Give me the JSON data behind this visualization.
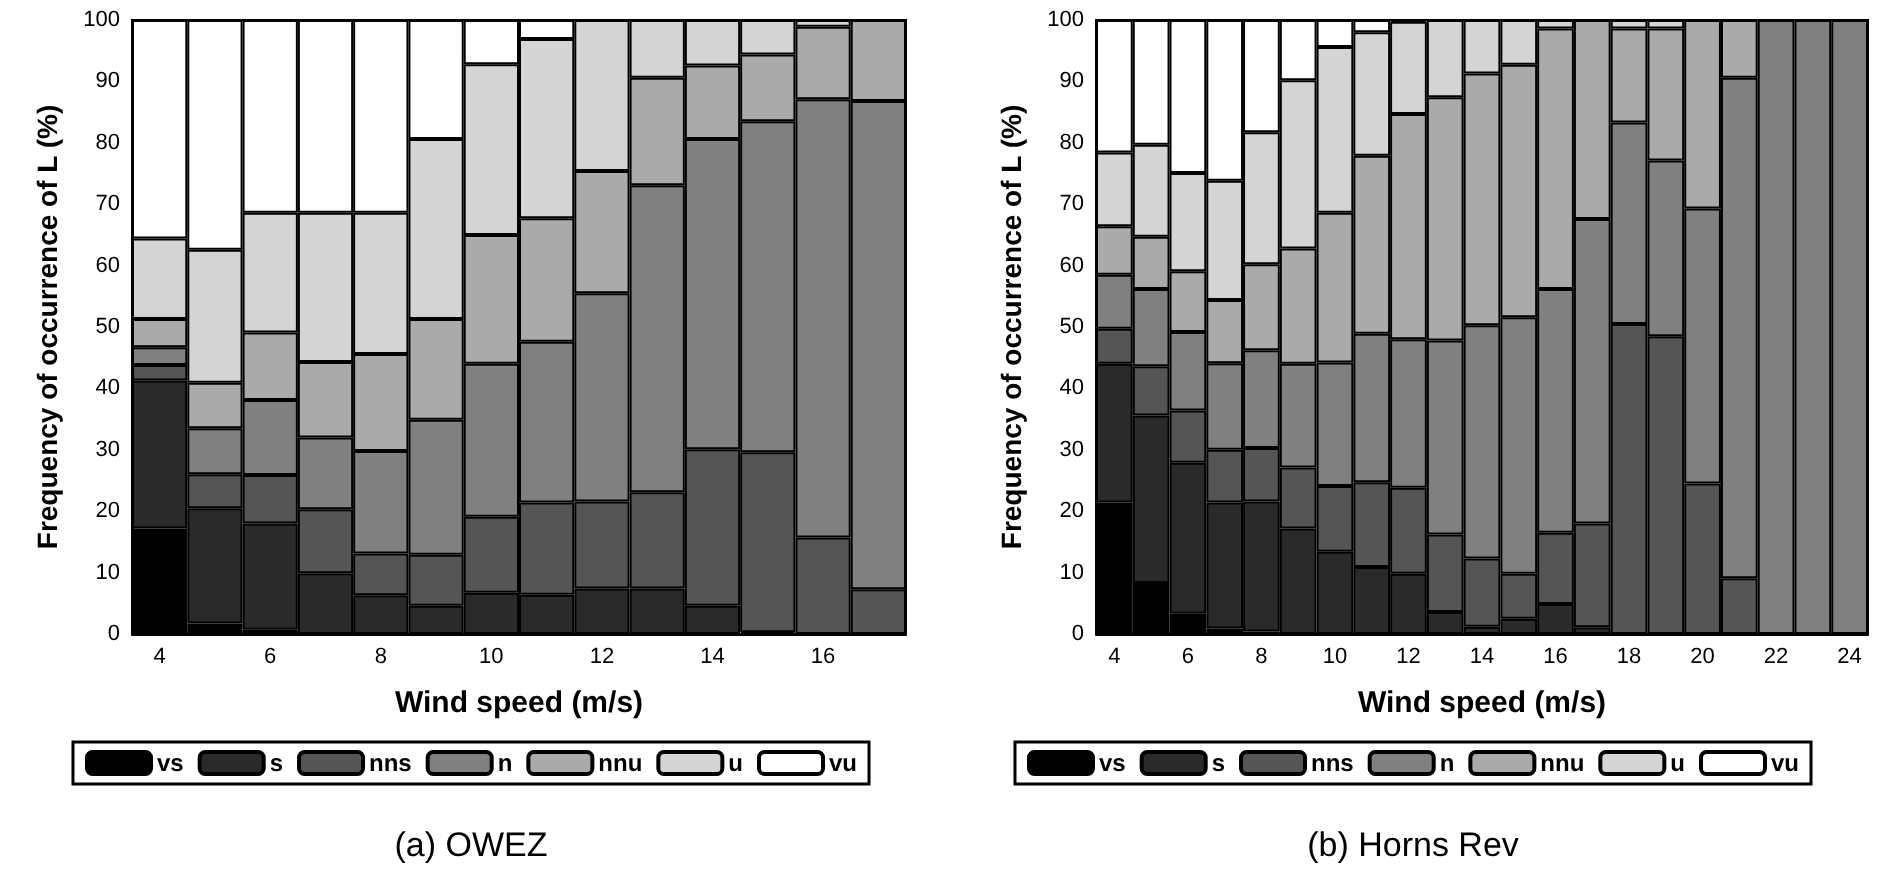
{
  "chart_data": [
    {
      "type": "bar",
      "title": "(a) OWEZ",
      "xlabel": "Wind speed (m/s)",
      "ylabel": "Frequency of occurrence of L (%)",
      "stacked": true,
      "legend": "bottom",
      "grid": false,
      "categories": [
        "4",
        null,
        "6",
        null,
        "8",
        null,
        "10",
        null,
        "12",
        null,
        "14",
        null,
        "16",
        null
      ],
      "ylim": [
        0,
        100
      ],
      "yticks": [
        0,
        10,
        20,
        30,
        40,
        50,
        60,
        70,
        80,
        90,
        100
      ],
      "series": [
        {
          "name": "vs",
          "color": "#000000",
          "values": [
            17.2,
            1.7,
            0.7,
            0,
            0,
            0,
            0,
            0,
            0,
            0,
            0,
            0,
            0,
            0
          ]
        },
        {
          "name": "s",
          "color": "#2a2a2a",
          "values": [
            24.1,
            18.8,
            17.3,
            9.9,
            6.3,
            4.6,
            6.7,
            6.4,
            7.4,
            7.4,
            4.6,
            0.3,
            0,
            0
          ]
        },
        {
          "name": "nns",
          "color": "#555555",
          "values": [
            2.5,
            5.5,
            7.9,
            10.4,
            6.8,
            8.3,
            12.4,
            15.0,
            14.2,
            15.7,
            25.5,
            29.3,
            15.7,
            7.3
          ]
        },
        {
          "name": "n",
          "color": "#808080",
          "values": [
            2.9,
            7.5,
            12.2,
            11.7,
            16.7,
            22.0,
            24.9,
            26.2,
            33.9,
            50.0,
            50.5,
            53.9,
            71.4,
            79.5
          ]
        },
        {
          "name": "nnu",
          "color": "#aaaaaa",
          "values": [
            4.6,
            7.4,
            11.0,
            12.3,
            15.8,
            16.4,
            21.0,
            20.1,
            19.9,
            17.5,
            12.0,
            10.9,
            11.8,
            13.2
          ]
        },
        {
          "name": "u",
          "color": "#d4d4d4",
          "values": [
            13.1,
            21.7,
            19.5,
            24.3,
            23.0,
            29.3,
            27.8,
            29.2,
            24.6,
            9.4,
            7.4,
            5.6,
            1.1,
            0
          ]
        },
        {
          "name": "vu",
          "color": "#ffffff",
          "values": [
            35.6,
            37.4,
            31.4,
            31.4,
            31.4,
            19.4,
            7.2,
            3.1,
            0,
            0,
            0,
            0,
            0,
            0
          ]
        }
      ]
    },
    {
      "type": "bar",
      "title": "(b) Horns Rev",
      "xlabel": "Wind speed (m/s)",
      "ylabel": "Frequency of occurrence of L (%)",
      "stacked": true,
      "legend": "bottom",
      "grid": false,
      "categories": [
        "4",
        null,
        "6",
        null,
        "8",
        null,
        "10",
        null,
        "12",
        null,
        "14",
        null,
        "16",
        null,
        "18",
        null,
        "20",
        null,
        "22",
        null,
        "24"
      ],
      "ylim": [
        0,
        100
      ],
      "yticks": [
        0,
        10,
        20,
        30,
        40,
        50,
        60,
        70,
        80,
        90,
        100
      ],
      "series": [
        {
          "name": "vs",
          "color": "#000000",
          "values": [
            21.4,
            8.3,
            3.3,
            0.9,
            0.4,
            0,
            0,
            0,
            0,
            0,
            0,
            0,
            0,
            0,
            0,
            0,
            0,
            0,
            0,
            0,
            0
          ]
        },
        {
          "name": "s",
          "color": "#2a2a2a",
          "values": [
            22.6,
            27.3,
            24.6,
            20.5,
            21.2,
            17.2,
            13.4,
            10.9,
            9.8,
            3.6,
            1.2,
            2.5,
            4.9,
            1.1,
            0,
            0,
            0,
            0,
            0,
            0,
            0
          ]
        },
        {
          "name": "nns",
          "color": "#555555",
          "values": [
            5.7,
            8.0,
            8.5,
            8.6,
            8.7,
            9.9,
            10.7,
            13.8,
            14.0,
            12.6,
            11.1,
            7.3,
            11.6,
            16.9,
            50.5,
            48.5,
            24.5,
            9.1,
            0,
            0,
            0
          ]
        },
        {
          "name": "n",
          "color": "#808080",
          "values": [
            8.8,
            12.6,
            12.8,
            14.1,
            15.9,
            16.9,
            20.1,
            24.2,
            24.2,
            31.6,
            38.0,
            41.8,
            39.7,
            49.6,
            32.8,
            28.6,
            44.8,
            81.5,
            100,
            100,
            100
          ]
        },
        {
          "name": "nnu",
          "color": "#aaaaaa",
          "values": [
            7.9,
            8.5,
            9.9,
            10.3,
            14.0,
            18.8,
            24.4,
            29.0,
            36.7,
            39.6,
            41.0,
            41.1,
            42.4,
            32.4,
            15.3,
            21.5,
            30.7,
            9.4,
            0,
            0,
            0
          ]
        },
        {
          "name": "u",
          "color": "#d4d4d4",
          "values": [
            12.0,
            15.0,
            16.0,
            19.4,
            21.5,
            27.4,
            27.0,
            20.1,
            15.0,
            12.6,
            8.7,
            7.3,
            1.4,
            0,
            1.4,
            1.4,
            0,
            0,
            0,
            0,
            0
          ]
        },
        {
          "name": "vu",
          "color": "#ffffff",
          "values": [
            21.6,
            20.3,
            24.9,
            26.2,
            18.3,
            9.8,
            4.4,
            2.0,
            0.3,
            0,
            0,
            0,
            0,
            0,
            0,
            0,
            0,
            0,
            0,
            0,
            0
          ]
        }
      ]
    }
  ]
}
